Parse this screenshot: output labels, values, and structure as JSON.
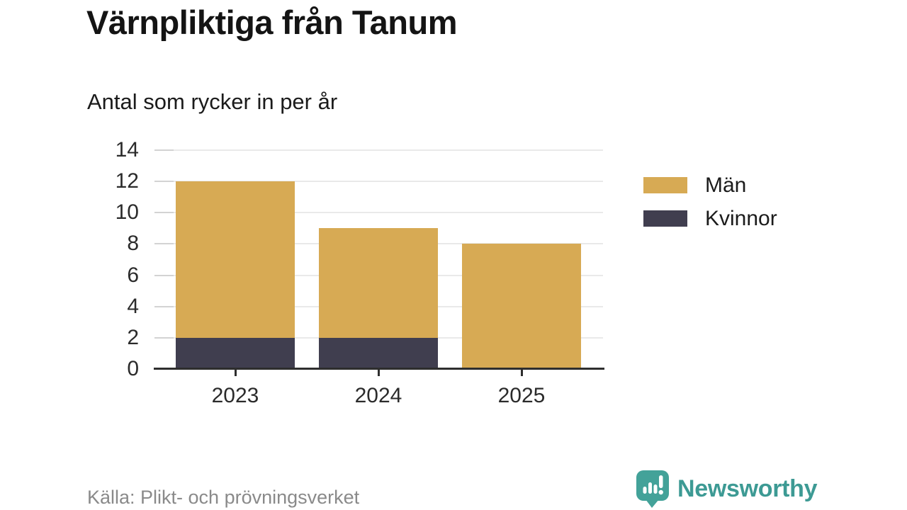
{
  "chart_data": {
    "type": "bar",
    "stacked": true,
    "title": "Värnpliktiga från Tanum",
    "subtitle": "Antal som rycker in per år",
    "categories": [
      "2023",
      "2024",
      "2025"
    ],
    "series": [
      {
        "name": "Män",
        "color": "#D7AA54",
        "values": [
          10,
          7,
          8
        ]
      },
      {
        "name": "Kvinnor",
        "color": "#403E4F",
        "values": [
          2,
          2,
          0
        ]
      }
    ],
    "stack_totals": [
      12,
      9,
      8
    ],
    "xlabel": "",
    "ylabel": "",
    "ylim": [
      0,
      14
    ],
    "yticks": [
      0,
      2,
      4,
      6,
      8,
      10,
      12,
      14
    ],
    "grid": "horizontal-light",
    "legend_position": "right"
  },
  "footer": {
    "source": "Källa: Plikt- och prövningsverket",
    "brand": "Newsworthy"
  },
  "colors": {
    "men": "#D7AA54",
    "women": "#403E4F",
    "brand_teal": "#3D9A94",
    "brand_icon": "#43A299",
    "gridline": "#E9E9E9",
    "axis_tick": "#D3D3D3",
    "axis_line": "#2E2E2E",
    "source_text": "#8A8A8A"
  }
}
